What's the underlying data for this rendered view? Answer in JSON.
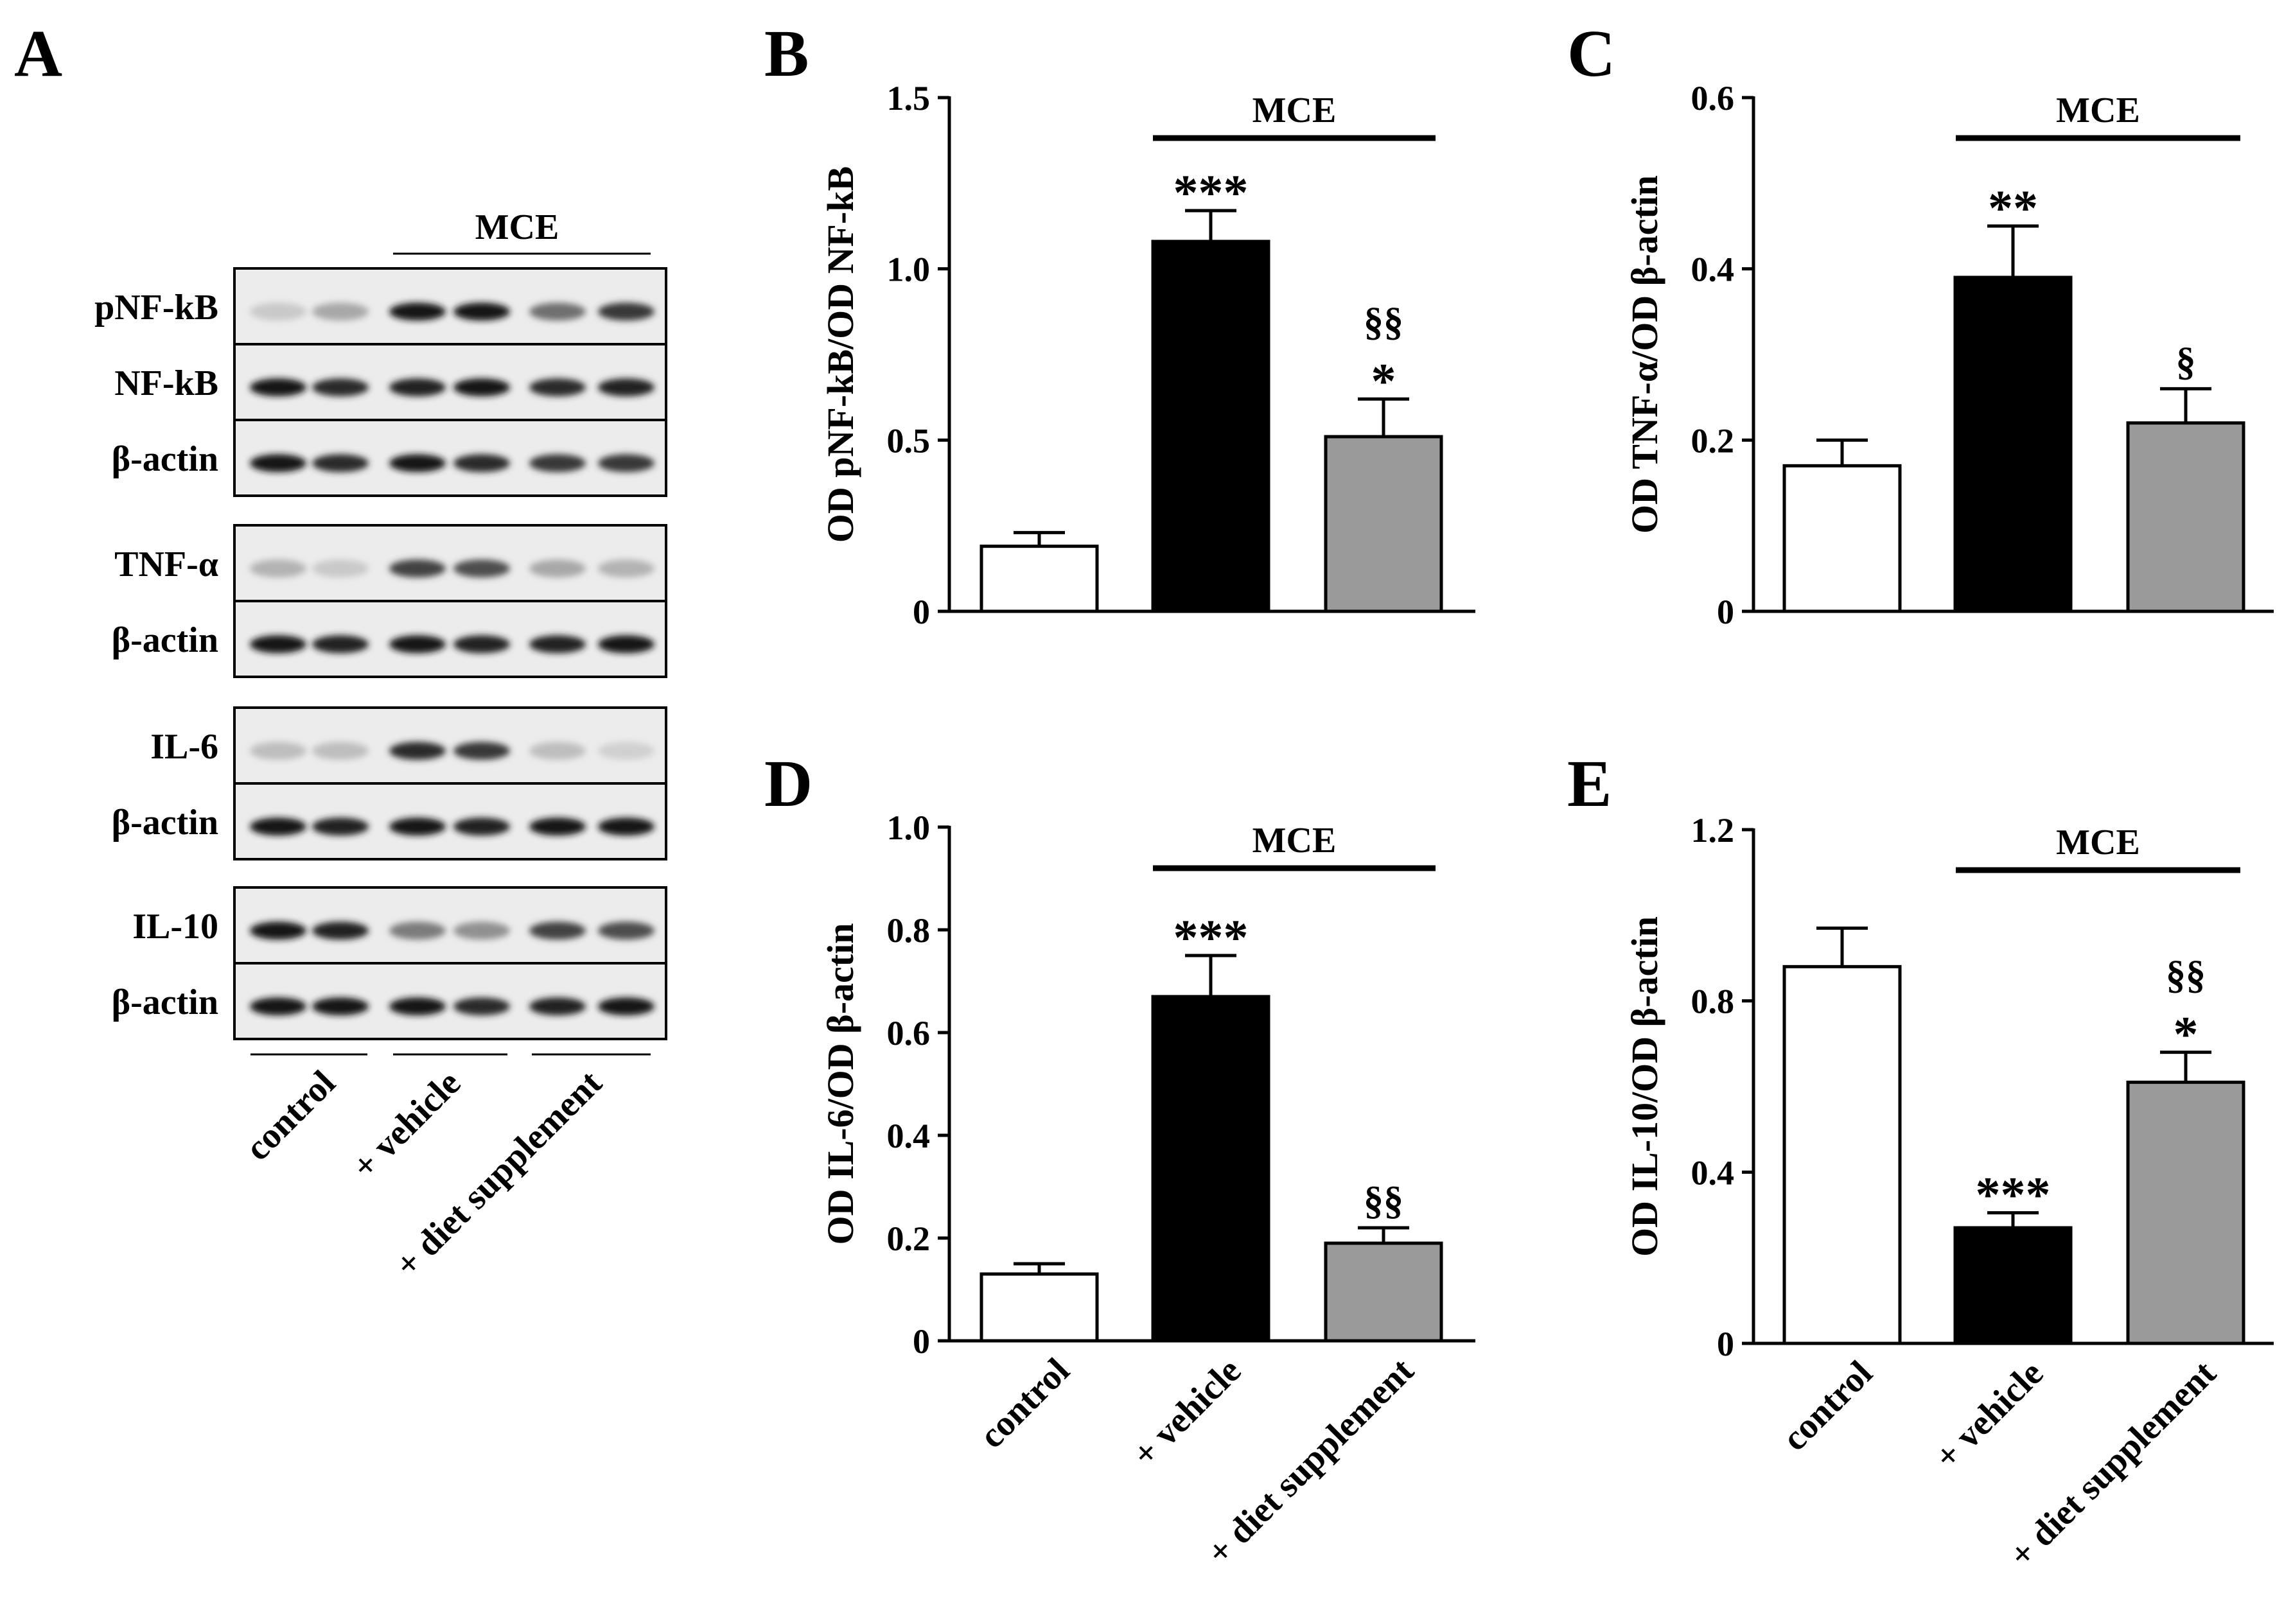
{
  "panel_a": {
    "letter": "A",
    "mce_label": "MCE",
    "blocks": [
      {
        "rows": [
          {
            "label": "pNF-kB",
            "bands": [
              0.15,
              0.3,
              0.95,
              0.95,
              0.55,
              0.8
            ]
          },
          {
            "label": "NF-kB",
            "bands": [
              0.95,
              0.85,
              0.9,
              0.95,
              0.85,
              0.9
            ]
          },
          {
            "label": "β-actin",
            "bands": [
              0.95,
              0.85,
              0.95,
              0.85,
              0.8,
              0.8
            ]
          }
        ]
      },
      {
        "rows": [
          {
            "label": "TNF-α",
            "bands": [
              0.25,
              0.15,
              0.75,
              0.7,
              0.3,
              0.25
            ]
          },
          {
            "label": "β-actin",
            "bands": [
              0.95,
              0.9,
              0.95,
              0.9,
              0.9,
              0.95
            ]
          }
        ]
      },
      {
        "rows": [
          {
            "label": "IL-6",
            "bands": [
              0.2,
              0.2,
              0.85,
              0.8,
              0.2,
              0.12
            ]
          },
          {
            "label": "β-actin",
            "bands": [
              0.95,
              0.9,
              0.95,
              0.9,
              0.95,
              0.95
            ]
          }
        ]
      },
      {
        "rows": [
          {
            "label": "IL-10",
            "bands": [
              0.95,
              0.9,
              0.5,
              0.4,
              0.75,
              0.7
            ]
          },
          {
            "label": "β-actin",
            "bands": [
              0.95,
              0.95,
              0.95,
              0.85,
              0.9,
              0.95
            ]
          }
        ]
      }
    ],
    "groups": [
      "control",
      "+ vehicle",
      "+ diet supplement"
    ]
  },
  "chart_data": [
    {
      "panel": "B",
      "type": "bar",
      "categories": [
        "control",
        "+ vehicle",
        "+ diet supplement"
      ],
      "values": [
        0.19,
        1.08,
        0.51
      ],
      "errors": [
        0.04,
        0.09,
        0.11
      ],
      "annotations": [
        [],
        [
          "***"
        ],
        [
          "§§",
          "*"
        ]
      ],
      "colors": [
        "#ffffff",
        "#000000",
        "#9a9a9a"
      ],
      "ylabel": "OD pNF-kB/OD NF-kB",
      "ylim": [
        0,
        1.5
      ],
      "yticks": [
        0,
        0.5,
        1.0,
        1.5
      ],
      "ytick_labels": [
        "0",
        "0.5",
        "1.0",
        "1.5"
      ],
      "group_bar": "MCE",
      "show_xlabels": false
    },
    {
      "panel": "C",
      "type": "bar",
      "categories": [
        "control",
        "+ vehicle",
        "+ diet supplement"
      ],
      "values": [
        0.17,
        0.39,
        0.22
      ],
      "errors": [
        0.03,
        0.06,
        0.04
      ],
      "annotations": [
        [],
        [
          "**"
        ],
        [
          "§"
        ]
      ],
      "colors": [
        "#ffffff",
        "#000000",
        "#9a9a9a"
      ],
      "ylabel": "OD TNF-α/OD β-actin",
      "ylim": [
        0,
        0.6
      ],
      "yticks": [
        0,
        0.2,
        0.4,
        0.6
      ],
      "ytick_labels": [
        "0",
        "0.2",
        "0.4",
        "0.6"
      ],
      "group_bar": "MCE",
      "show_xlabels": false
    },
    {
      "panel": "D",
      "type": "bar",
      "categories": [
        "control",
        "+ vehicle",
        "+ diet supplement"
      ],
      "values": [
        0.13,
        0.67,
        0.19
      ],
      "errors": [
        0.02,
        0.08,
        0.03
      ],
      "annotations": [
        [],
        [
          "***"
        ],
        [
          "§§"
        ]
      ],
      "colors": [
        "#ffffff",
        "#000000",
        "#9a9a9a"
      ],
      "ylabel": "OD IL-6/OD β-actin",
      "ylim": [
        0,
        1.0
      ],
      "yticks": [
        0,
        0.2,
        0.4,
        0.6,
        0.8,
        1.0
      ],
      "ytick_labels": [
        "0",
        "0.2",
        "0.4",
        "0.6",
        "0.8",
        "1.0"
      ],
      "group_bar": "MCE",
      "show_xlabels": true
    },
    {
      "panel": "E",
      "type": "bar",
      "categories": [
        "control",
        "+ vehicle",
        "+ diet supplement"
      ],
      "values": [
        0.88,
        0.27,
        0.61
      ],
      "errors": [
        0.09,
        0.035,
        0.07
      ],
      "annotations": [
        [],
        [
          "***"
        ],
        [
          "§§",
          "*"
        ]
      ],
      "colors": [
        "#ffffff",
        "#000000",
        "#9a9a9a"
      ],
      "ylabel": "OD IL-10/OD β-actin",
      "ylim": [
        0,
        1.2
      ],
      "yticks": [
        0,
        0.4,
        0.8,
        1.2
      ],
      "ytick_labels": [
        "0",
        "0.4",
        "0.8",
        "1.2"
      ],
      "group_bar": "MCE",
      "show_xlabels": true
    }
  ]
}
